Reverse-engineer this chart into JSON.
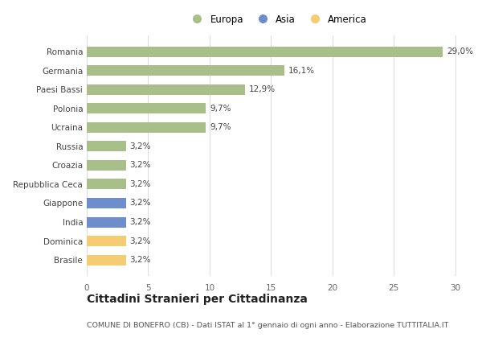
{
  "categories": [
    "Brasile",
    "Dominica",
    "India",
    "Giappone",
    "Repubblica Ceca",
    "Croazia",
    "Russia",
    "Ucraina",
    "Polonia",
    "Paesi Bassi",
    "Germania",
    "Romania"
  ],
  "values": [
    3.2,
    3.2,
    3.2,
    3.2,
    3.2,
    3.2,
    3.2,
    9.7,
    9.7,
    12.9,
    16.1,
    29.0
  ],
  "labels": [
    "3,2%",
    "3,2%",
    "3,2%",
    "3,2%",
    "3,2%",
    "3,2%",
    "3,2%",
    "9,7%",
    "9,7%",
    "12,9%",
    "16,1%",
    "29,0%"
  ],
  "colors": [
    "#f5cc72",
    "#f5cc72",
    "#6e8ecb",
    "#6e8ecb",
    "#a8bf8a",
    "#a8bf8a",
    "#a8bf8a",
    "#a8bf8a",
    "#a8bf8a",
    "#a8bf8a",
    "#a8bf8a",
    "#a8bf8a"
  ],
  "legend_labels": [
    "Europa",
    "Asia",
    "America"
  ],
  "legend_colors": [
    "#a8bf8a",
    "#6e8ecb",
    "#f5cc72"
  ],
  "title": "Cittadini Stranieri per Cittadinanza",
  "subtitle": "COMUNE DI BONEFRO (CB) - Dati ISTAT al 1° gennaio di ogni anno - Elaborazione TUTTITALIA.IT",
  "xlim": [
    0,
    31
  ],
  "xticks": [
    0,
    5,
    10,
    15,
    20,
    25,
    30
  ],
  "bar_height": 0.55,
  "background_color": "#ffffff",
  "grid_color": "#dddddd",
  "label_fontsize": 7.5,
  "tick_fontsize": 7.5,
  "title_fontsize": 10,
  "subtitle_fontsize": 6.8
}
